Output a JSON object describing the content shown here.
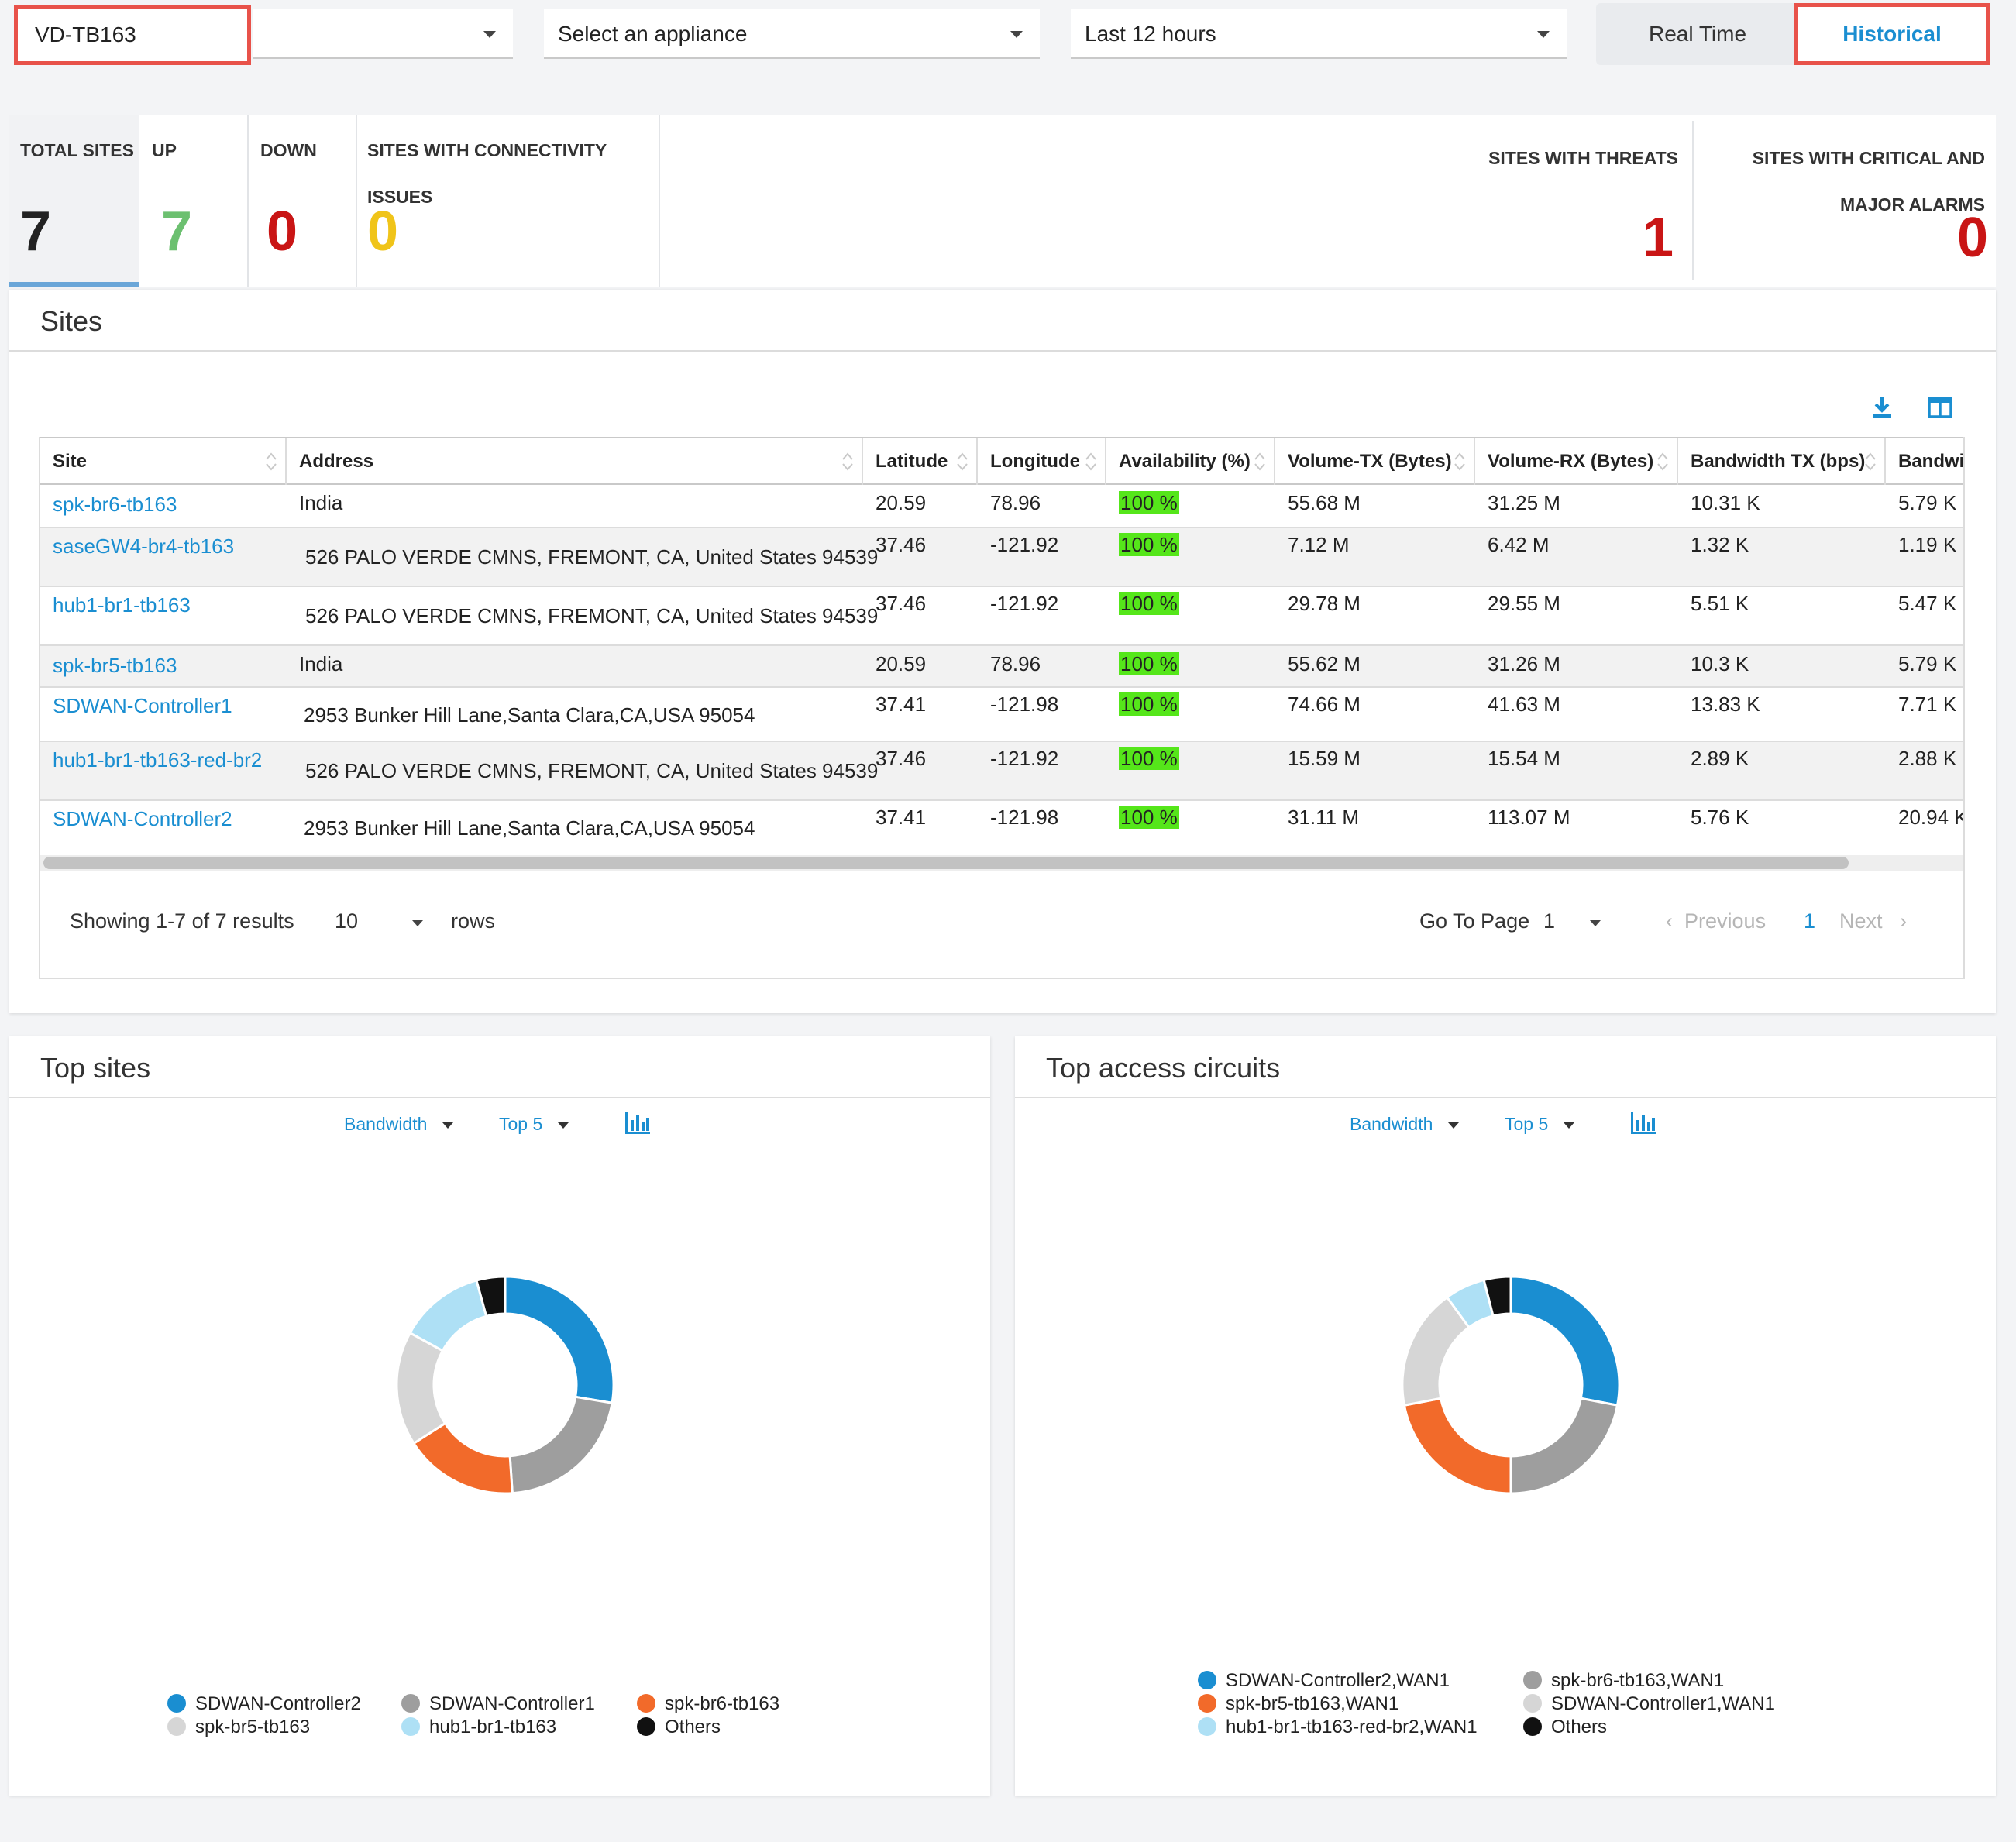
{
  "toolbar": {
    "tenant": "VD-TB163",
    "org_select": "",
    "appliance_placeholder": "Select an appliance",
    "time_range": "Last 12 hours",
    "realtime_label": "Real Time",
    "historical_label": "Historical"
  },
  "stats": {
    "total": {
      "label": "TOTAL SITES",
      "value": "7"
    },
    "up": {
      "label": "UP",
      "value": "7"
    },
    "down": {
      "label": "DOWN",
      "value": "0"
    },
    "connectivity": {
      "label_line1": "SITES WITH CONNECTIVITY",
      "label_line2": "ISSUES",
      "value": "0"
    },
    "threats": {
      "label": "SITES WITH THREATS",
      "value": "1"
    },
    "alarms": {
      "label_line1": "SITES WITH CRITICAL AND",
      "label_line2": "MAJOR ALARMS",
      "value": "0"
    },
    "colors": {
      "up": "#6cc070",
      "down": "#c91515",
      "issues": "#f0c419"
    }
  },
  "sites": {
    "title": "Sites",
    "icons": [
      "download-icon",
      "columns-icon"
    ],
    "columns": [
      "Site",
      "Address",
      "Latitude",
      "Longitude",
      "Availability (%)",
      "Volume-TX (Bytes)",
      "Volume-RX (Bytes)",
      "Bandwidth TX (bps)",
      "Bandwic"
    ],
    "rows": [
      {
        "site": "spk-br6-tb163",
        "address": "India",
        "lat": "20.59",
        "lon": "78.96",
        "avail": "100 %",
        "vtx": "55.68 M",
        "vrx": "31.25 M",
        "btx": "10.31 K",
        "brx": "5.79 K"
      },
      {
        "site": "saseGW4-br4-tb163",
        "address": "526 PALO VERDE CMNS, FREMONT, CA, United States 94539",
        "lat": "37.46",
        "lon": "-121.92",
        "avail": "100 %",
        "vtx": "7.12 M",
        "vrx": "6.42 M",
        "btx": "1.32 K",
        "brx": "1.19 K"
      },
      {
        "site": "hub1-br1-tb163",
        "address": "526 PALO VERDE CMNS, FREMONT, CA, United States 94539",
        "lat": "37.46",
        "lon": "-121.92",
        "avail": "100 %",
        "vtx": "29.78 M",
        "vrx": "29.55 M",
        "btx": "5.51 K",
        "brx": "5.47 K"
      },
      {
        "site": "spk-br5-tb163",
        "address": "India",
        "lat": "20.59",
        "lon": "78.96",
        "avail": "100 %",
        "vtx": "55.62 M",
        "vrx": "31.26 M",
        "btx": "10.3 K",
        "brx": "5.79 K"
      },
      {
        "site": "SDWAN-Controller1",
        "address": "2953 Bunker Hill Lane,Santa Clara,CA,USA 95054",
        "lat": "37.41",
        "lon": "-121.98",
        "avail": "100 %",
        "vtx": "74.66 M",
        "vrx": "41.63 M",
        "btx": "13.83 K",
        "brx": "7.71 K"
      },
      {
        "site": "hub1-br1-tb163-red-br2",
        "address": "526 PALO VERDE CMNS, FREMONT, CA, United States 94539",
        "lat": "37.46",
        "lon": "-121.92",
        "avail": "100 %",
        "vtx": "15.59 M",
        "vrx": "15.54 M",
        "btx": "2.89 K",
        "brx": "2.88 K"
      },
      {
        "site": "SDWAN-Controller2",
        "address": "2953 Bunker Hill Lane,Santa Clara,CA,USA 95054",
        "lat": "37.41",
        "lon": "-121.98",
        "avail": "100 %",
        "vtx": "31.11 M",
        "vrx": "113.07 M",
        "btx": "5.76 K",
        "brx": "20.94 K"
      }
    ],
    "pager": {
      "showing": "Showing 1-7 of 7 results",
      "rows_value": "10",
      "rows_label": "rows",
      "goto_label": "Go To Page",
      "goto_value": "1",
      "previous": "Previous",
      "current": "1",
      "next": "Next"
    }
  },
  "top_sites": {
    "title": "Top sites",
    "metric": "Bandwidth",
    "top": "Top 5",
    "chart_icon": "bar-chart-icon",
    "chart_data": {
      "type": "pie",
      "variant": "donut",
      "legend_position": "bottom",
      "slices": [
        {
          "name": "SDWAN-Controller2",
          "value": 26,
          "color": "#1a8ed1"
        },
        {
          "name": "SDWAN-Controller1",
          "value": 20,
          "color": "#9e9e9e"
        },
        {
          "name": "spk-br6-tb163",
          "value": 16,
          "color": "#f26a2a"
        },
        {
          "name": "spk-br5-tb163",
          "value": 16,
          "color": "#d6d6d6"
        },
        {
          "name": "hub1-br1-tb163",
          "value": 12,
          "color": "#aee0f5"
        },
        {
          "name": "Others",
          "value": 4,
          "color": "#111111"
        }
      ]
    }
  },
  "top_circuits": {
    "title": "Top access circuits",
    "metric": "Bandwidth",
    "top": "Top 5",
    "chart_icon": "bar-chart-icon",
    "chart_data": {
      "type": "pie",
      "variant": "donut",
      "legend_position": "bottom",
      "slices": [
        {
          "name": "SDWAN-Controller2,WAN1",
          "value": 28,
          "color": "#1a8ed1"
        },
        {
          "name": "spk-br6-tb163,WAN1",
          "value": 22,
          "color": "#9e9e9e"
        },
        {
          "name": "spk-br5-tb163,WAN1",
          "value": 22,
          "color": "#f26a2a"
        },
        {
          "name": "SDWAN-Controller1,WAN1",
          "value": 18,
          "color": "#d6d6d6"
        },
        {
          "name": "hub1-br1-tb163-red-br2,WAN1",
          "value": 6,
          "color": "#aee0f5"
        },
        {
          "name": "Others",
          "value": 4,
          "color": "#111111"
        }
      ]
    }
  }
}
